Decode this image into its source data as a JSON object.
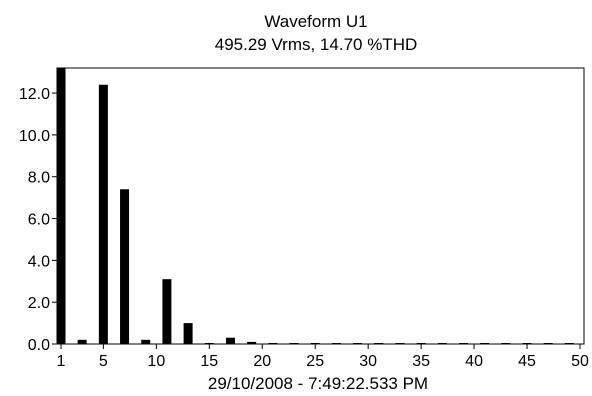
{
  "chart_data": {
    "type": "bar",
    "title": "Waveform U1",
    "subtitle": "495.29 Vrms, 14.70 %THD",
    "footer": "29/10/2008 - 7:49:22.533 PM",
    "xlabel": "",
    "ylabel": "",
    "xlim": [
      1,
      50
    ],
    "ylim": [
      0,
      13.2
    ],
    "x_ticks": [
      1,
      5,
      10,
      15,
      20,
      25,
      30,
      35,
      40,
      45,
      50
    ],
    "x_tick_labels": [
      "1",
      "5",
      "10",
      "15",
      "20",
      "25",
      "30",
      "35",
      "40",
      "45",
      "50"
    ],
    "y_ticks": [
      0,
      2,
      4,
      6,
      8,
      10,
      12
    ],
    "y_tick_labels": [
      "0.0",
      "2.0",
      "4.0",
      "6.0",
      "8.0",
      "10.0",
      "12.0"
    ],
    "grid": false,
    "bar_color": "#000000",
    "x": [
      1,
      3,
      5,
      7,
      9,
      11,
      13,
      15,
      17,
      19,
      21,
      23,
      25,
      27,
      29,
      31,
      33,
      35,
      37,
      39,
      41,
      43,
      45,
      47,
      49
    ],
    "values": [
      13.2,
      0.2,
      12.4,
      7.4,
      0.2,
      3.1,
      1.0,
      0.05,
      0.3,
      0.1,
      0.05,
      0.03,
      0.03,
      0.03,
      0.03,
      0.03,
      0.03,
      0.03,
      0.03,
      0.03,
      0.03,
      0.03,
      0.03,
      0.03,
      0.03
    ]
  }
}
